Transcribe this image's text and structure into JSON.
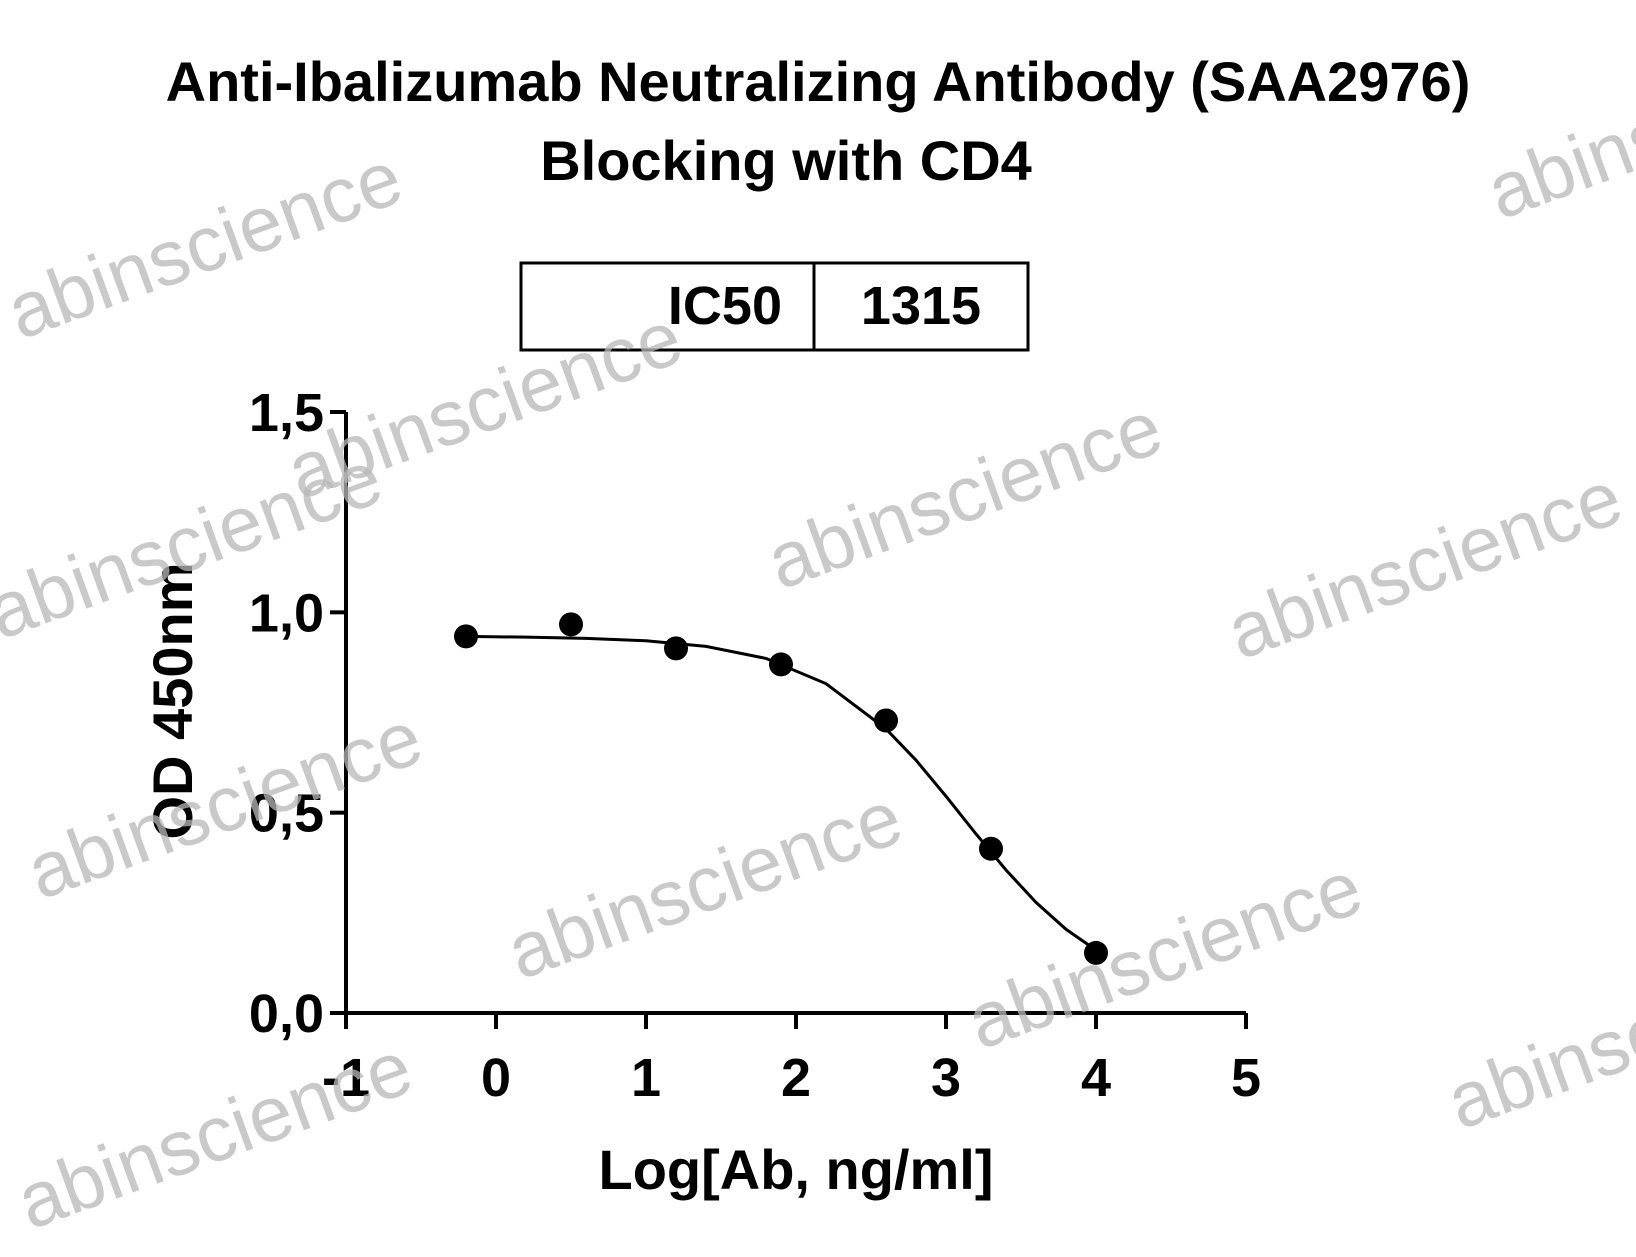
{
  "chart_data": {
    "type": "scatter",
    "title": "Anti-Ibalizumab Neutralizing Antibody (SAA2976)",
    "subtitle": "Blocking with CD4",
    "ic50_label": "IC50",
    "ic50_value": 1315,
    "xlabel": "Log[Ab, ng/ml]",
    "ylabel": "OD 450nm",
    "x": [
      -0.2,
      0.5,
      1.2,
      1.9,
      2.6,
      3.3,
      4.0
    ],
    "values": [
      0.94,
      0.97,
      0.91,
      0.87,
      0.73,
      0.41,
      0.15
    ],
    "color": "#000000",
    "fit": {
      "x": [
        -0.2,
        0.2,
        0.6,
        1.0,
        1.4,
        1.8,
        2.2,
        2.6,
        2.8,
        3.0,
        3.2,
        3.4,
        3.6,
        3.8,
        4.0
      ],
      "values": [
        0.94,
        0.938,
        0.935,
        0.929,
        0.915,
        0.885,
        0.822,
        0.709,
        0.631,
        0.541,
        0.447,
        0.357,
        0.276,
        0.209,
        0.157
      ]
    },
    "xlim": [
      -1,
      5
    ],
    "xticks": [
      -1,
      0,
      1,
      2,
      3,
      4,
      5
    ],
    "ylim": [
      0,
      1.5
    ],
    "yticks": [
      {
        "value": 0,
        "label": "0,0"
      },
      {
        "value": 0.5,
        "label": "0,5"
      },
      {
        "value": 1,
        "label": "1,0"
      },
      {
        "value": 1.5,
        "label": "1,5"
      }
    ],
    "watermark": "abinscience"
  }
}
